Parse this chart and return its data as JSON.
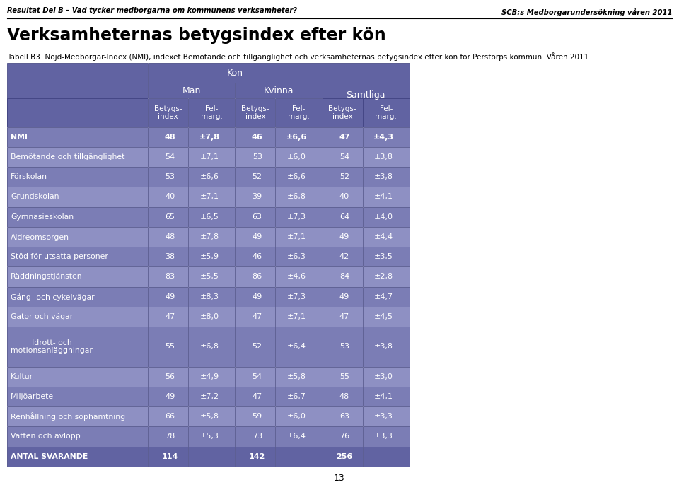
{
  "page_header_left": "Resultat Del B – Vad tycker medborgarna om kommunens verksamheter?",
  "page_header_right": "SCB:s Medborgarundersökning våren 2011",
  "title": "Verksamheternas betygsindex efter kön",
  "subtitle": "Tabell B3. Nöjd-Medborgar-Index (NMI), indexet Bemötande och tillgänglighet och verksamheternas betygsindex efter kön för Perstorps kommun. Våren 2011",
  "header_kon": "Kön",
  "header_man": "Man",
  "header_kvinna": "Kvinna",
  "header_samtliga": "Samtliga",
  "col_betygs": "Betygs-\nindex",
  "col_fel": "Fel-\nmarg.",
  "rows": [
    {
      "label": "NMI",
      "man_b": "48",
      "man_f": "±7,8",
      "kv_b": "46",
      "kv_f": "±6,6",
      "sam_b": "47",
      "sam_f": "±4,3",
      "bold": true
    },
    {
      "label": "Bemötande och tillgänglighet",
      "man_b": "54",
      "man_f": "±7,1",
      "kv_b": "53",
      "kv_f": "±6,0",
      "sam_b": "54",
      "sam_f": "±3,8",
      "bold": false
    },
    {
      "label": "Förskolan",
      "man_b": "53",
      "man_f": "±6,6",
      "kv_b": "52",
      "kv_f": "±6,6",
      "sam_b": "52",
      "sam_f": "±3,8",
      "bold": false
    },
    {
      "label": "Grundskolan",
      "man_b": "40",
      "man_f": "±7,1",
      "kv_b": "39",
      "kv_f": "±6,8",
      "sam_b": "40",
      "sam_f": "±4,1",
      "bold": false
    },
    {
      "label": "Gymnasieskolan",
      "man_b": "65",
      "man_f": "±6,5",
      "kv_b": "63",
      "kv_f": "±7,3",
      "sam_b": "64",
      "sam_f": "±4,0",
      "bold": false
    },
    {
      "label": "Äldreomsorgen",
      "man_b": "48",
      "man_f": "±7,8",
      "kv_b": "49",
      "kv_f": "±7,1",
      "sam_b": "49",
      "sam_f": "±4,4",
      "bold": false
    },
    {
      "label": "Stöd för utsatta personer",
      "man_b": "38",
      "man_f": "±5,9",
      "kv_b": "46",
      "kv_f": "±6,3",
      "sam_b": "42",
      "sam_f": "±3,5",
      "bold": false
    },
    {
      "label": "Räddningstjänsten",
      "man_b": "83",
      "man_f": "±5,5",
      "kv_b": "86",
      "kv_f": "±4,6",
      "sam_b": "84",
      "sam_f": "±2,8",
      "bold": false
    },
    {
      "label": "Gång- och cykelvägar",
      "man_b": "49",
      "man_f": "±8,3",
      "kv_b": "49",
      "kv_f": "±7,3",
      "sam_b": "49",
      "sam_f": "±4,7",
      "bold": false
    },
    {
      "label": "Gator och vägar",
      "man_b": "47",
      "man_f": "±8,0",
      "kv_b": "47",
      "kv_f": "±7,1",
      "sam_b": "47",
      "sam_f": "±4,5",
      "bold": false
    },
    {
      "label": "Idrott- och\nmotionsanläggningar",
      "man_b": "55",
      "man_f": "±6,8",
      "kv_b": "52",
      "kv_f": "±6,4",
      "sam_b": "53",
      "sam_f": "±3,8",
      "bold": false
    },
    {
      "label": "Kultur",
      "man_b": "56",
      "man_f": "±4,9",
      "kv_b": "54",
      "kv_f": "±5,8",
      "sam_b": "55",
      "sam_f": "±3,0",
      "bold": false
    },
    {
      "label": "Miljöarbete",
      "man_b": "49",
      "man_f": "±7,2",
      "kv_b": "47",
      "kv_f": "±6,7",
      "sam_b": "48",
      "sam_f": "±4,1",
      "bold": false
    },
    {
      "label": "Renhållning och sophämtning",
      "man_b": "66",
      "man_f": "±5,8",
      "kv_b": "59",
      "kv_f": "±6,0",
      "sam_b": "63",
      "sam_f": "±3,3",
      "bold": false
    },
    {
      "label": "Vatten och avlopp",
      "man_b": "78",
      "man_f": "±5,3",
      "kv_b": "73",
      "kv_f": "±6,4",
      "sam_b": "76",
      "sam_f": "±3,3",
      "bold": false
    },
    {
      "label": "ANTAL SVARANDE",
      "man_b": "114",
      "man_f": "",
      "kv_b": "142",
      "kv_f": "",
      "sam_b": "256",
      "sam_f": "",
      "bold": true
    }
  ],
  "header_bg": "#6163a2",
  "header_text": "#ffffff",
  "row_bg_even": "#7b7db5",
  "row_bg_odd": "#8e90c3",
  "last_row_bg": "#6163a2",
  "border_color": "#3a3c7a",
  "page_num": "13"
}
